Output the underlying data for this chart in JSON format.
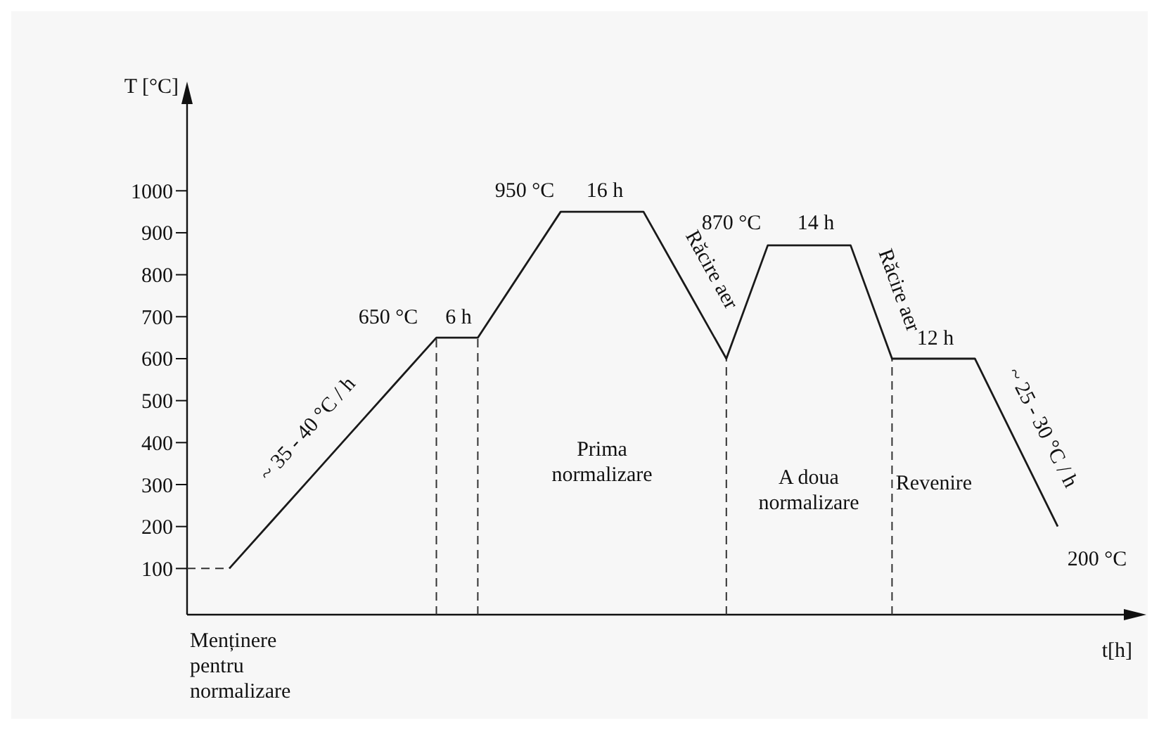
{
  "chart_data": {
    "type": "line",
    "xlabel": "t[h]",
    "ylabel": "T [°C]",
    "categories": [
      null,
      null,
      null,
      null,
      null,
      null,
      null,
      null,
      null,
      null,
      null,
      null,
      null,
      null,
      null,
      null,
      null,
      null,
      null,
      null,
      null
    ],
    "ylim": [
      -10,
      1220
    ],
    "yticks": [
      100,
      200,
      300,
      400,
      500,
      600,
      700,
      800,
      900,
      1000
    ],
    "tick_labels": "y",
    "grid": false,
    "series": [
      {
        "color": "#1a1a1a",
        "values": [
          100,
          210,
          320,
          430,
          540,
          650,
          650,
          800,
          950,
          950,
          950,
          775,
          600,
          870,
          870,
          870,
          600,
          600,
          600,
          400,
          200
        ]
      }
    ],
    "annotations": [
      "650 °C",
      "6 h",
      "950 °C",
      "16 h",
      "870 °C",
      "14 h",
      "12 h",
      "200 °C",
      "Răcire aer",
      "Răcire aer",
      "~ 35 - 40 °C / h",
      "~ 25 - 30 °C / h",
      "Prima normalizare",
      "A doua normalizare",
      "Revenire",
      "Menținere pentru normalizare"
    ]
  }
}
